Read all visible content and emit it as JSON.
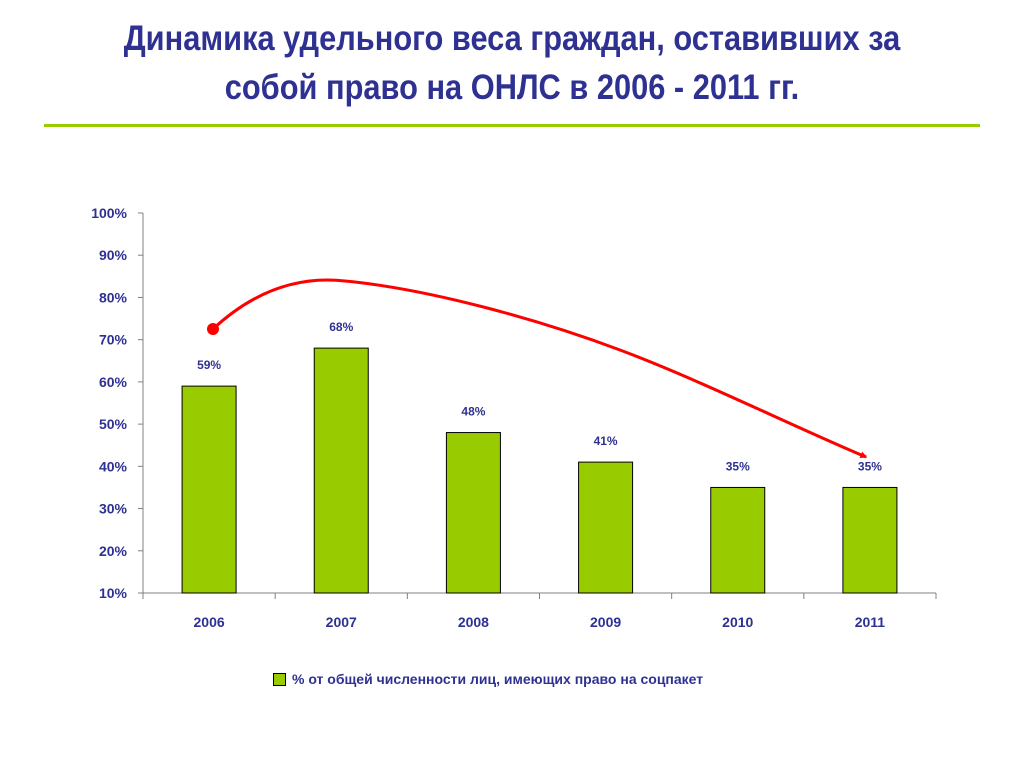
{
  "slide": {
    "title": "Динамика удельного веса граждан, оставивших за собой право на  ОНЛС в 2006 - 2011 гг."
  },
  "colors": {
    "title": "#2e3192",
    "rule": "#99cc00",
    "bar": "#99cc00",
    "trend_arrow": "#ff0000",
    "text": "#2e3192"
  },
  "chart_data": {
    "type": "bar",
    "title": "",
    "xlabel": "",
    "ylabel": "",
    "categories": [
      "2006",
      "2007",
      "2008",
      "2009",
      "2010",
      "2011"
    ],
    "series": [
      {
        "name": "% от общей численности лиц, имеющих право на соцпакет",
        "values": [
          59,
          68,
          48,
          41,
          35,
          35
        ],
        "labels": [
          "59%",
          "68%",
          "48%",
          "41%",
          "35%",
          "35%"
        ]
      }
    ],
    "ylim": [
      10,
      100
    ],
    "yticks": [
      "10%",
      "20%",
      "30%",
      "40%",
      "50%",
      "60%",
      "70%",
      "80%",
      "90%",
      "100%"
    ],
    "grid": false,
    "legend": "bottom",
    "annotations": [
      "red curved arrow from above the 2006 bar, peaking above 2007, pointing down to the 2011 bar (decreasing trend)"
    ]
  }
}
